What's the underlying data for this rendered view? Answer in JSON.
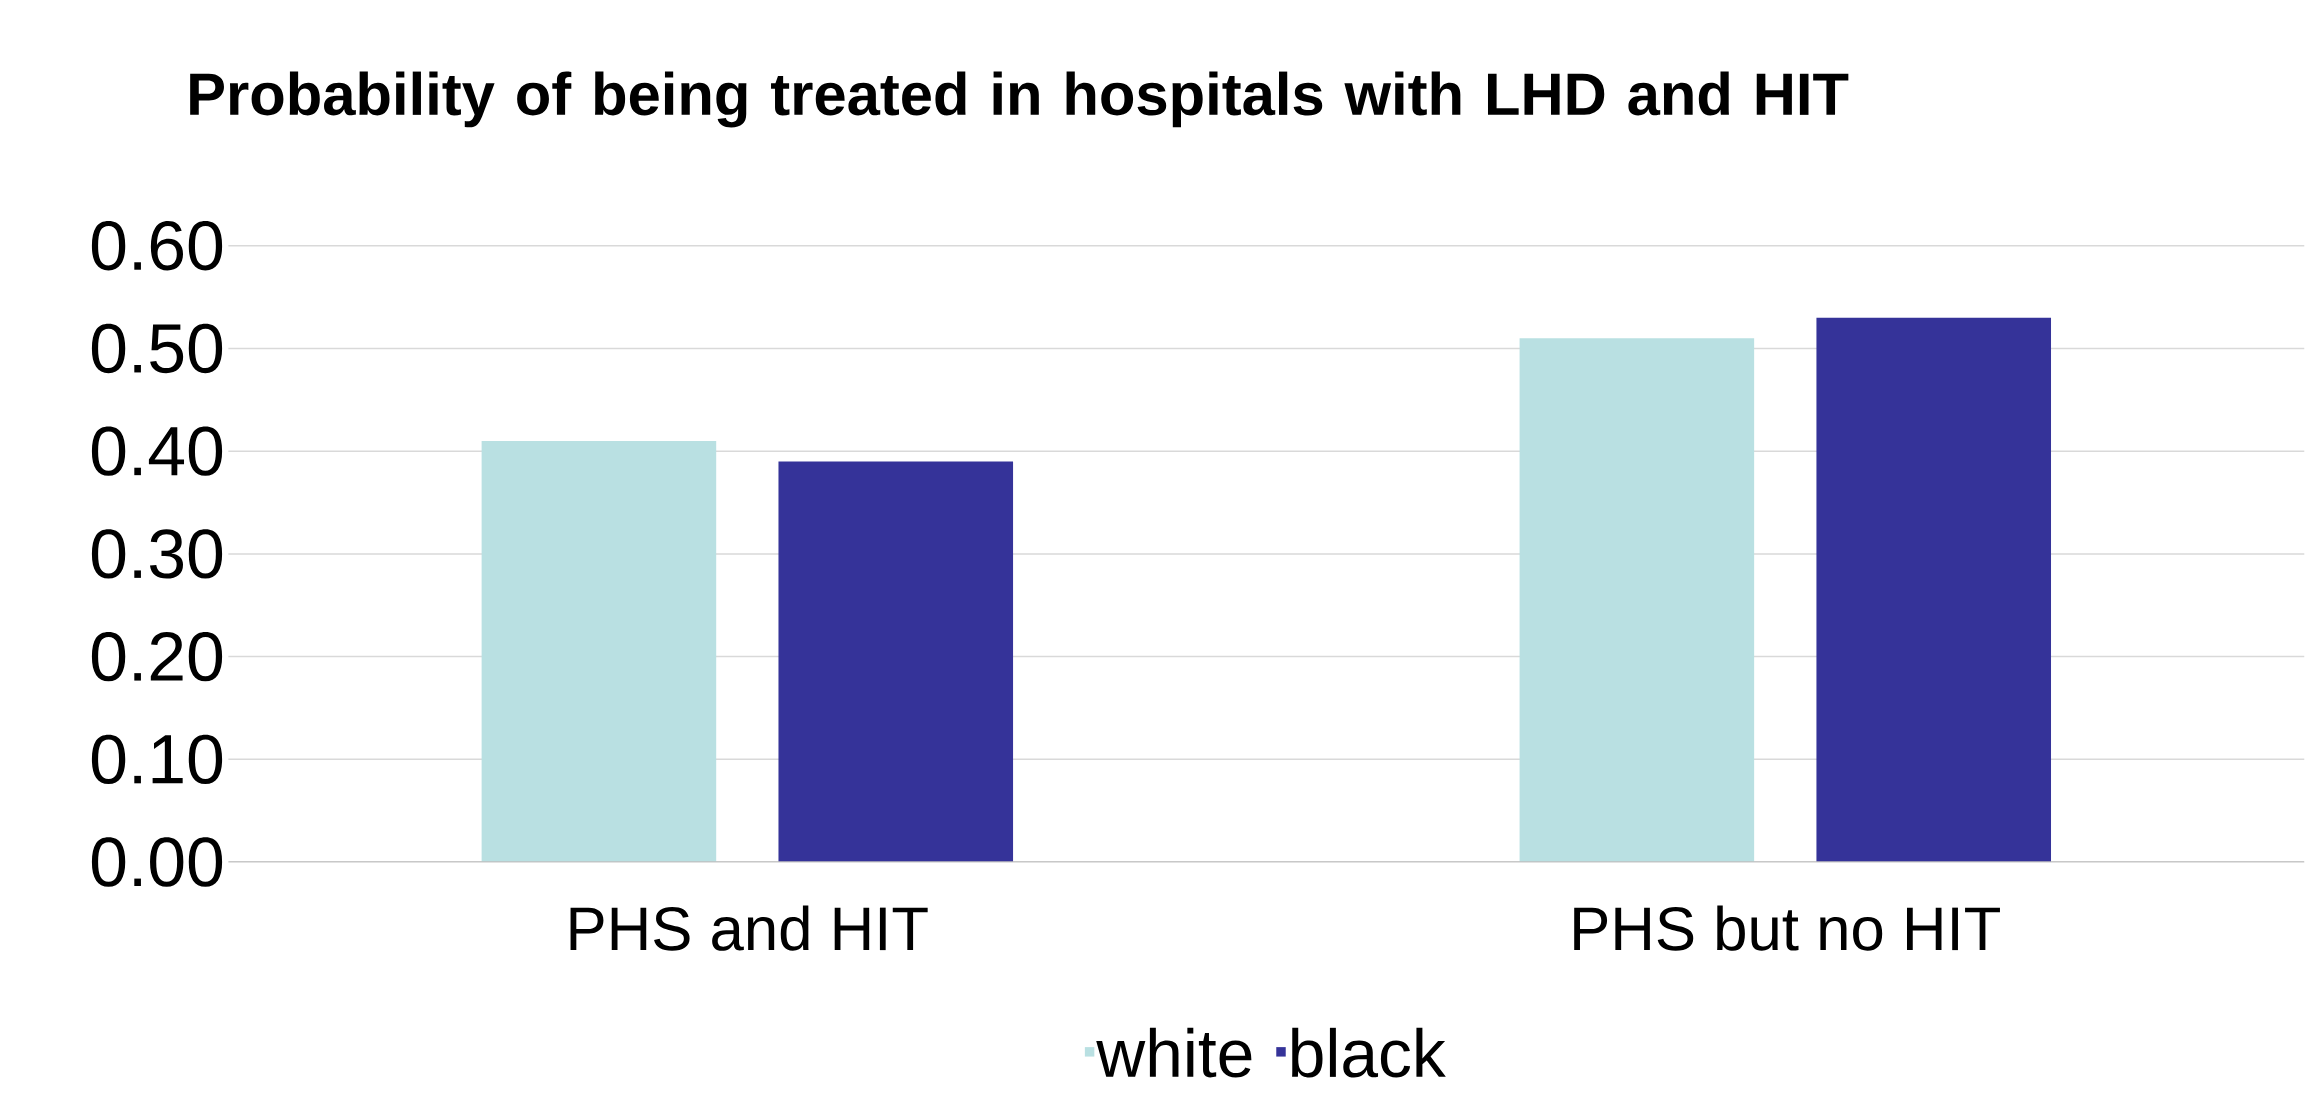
{
  "chart_data": {
    "type": "bar",
    "title": "Probability of being treated in hospitals with LHD and HIT",
    "categories": [
      "PHS and HIT",
      "PHS but no HIT"
    ],
    "series": [
      {
        "name": "white",
        "color": "#b9e0e2",
        "values": [
          0.41,
          0.51
        ]
      },
      {
        "name": "black",
        "color": "#353399",
        "values": [
          0.39,
          0.53
        ]
      }
    ],
    "ylim": [
      0,
      0.6
    ],
    "yticks": [
      {
        "value": 0,
        "label": "0.00"
      },
      {
        "value": 0.1,
        "label": "0.10"
      },
      {
        "value": 0.2,
        "label": "0.20"
      },
      {
        "value": 0.3,
        "label": "0.30"
      },
      {
        "value": 0.4,
        "label": "0.40"
      },
      {
        "value": 0.5,
        "label": "0.50"
      },
      {
        "value": 0.6,
        "label": "0.60"
      }
    ],
    "grid": "y",
    "legend": "bottom"
  }
}
